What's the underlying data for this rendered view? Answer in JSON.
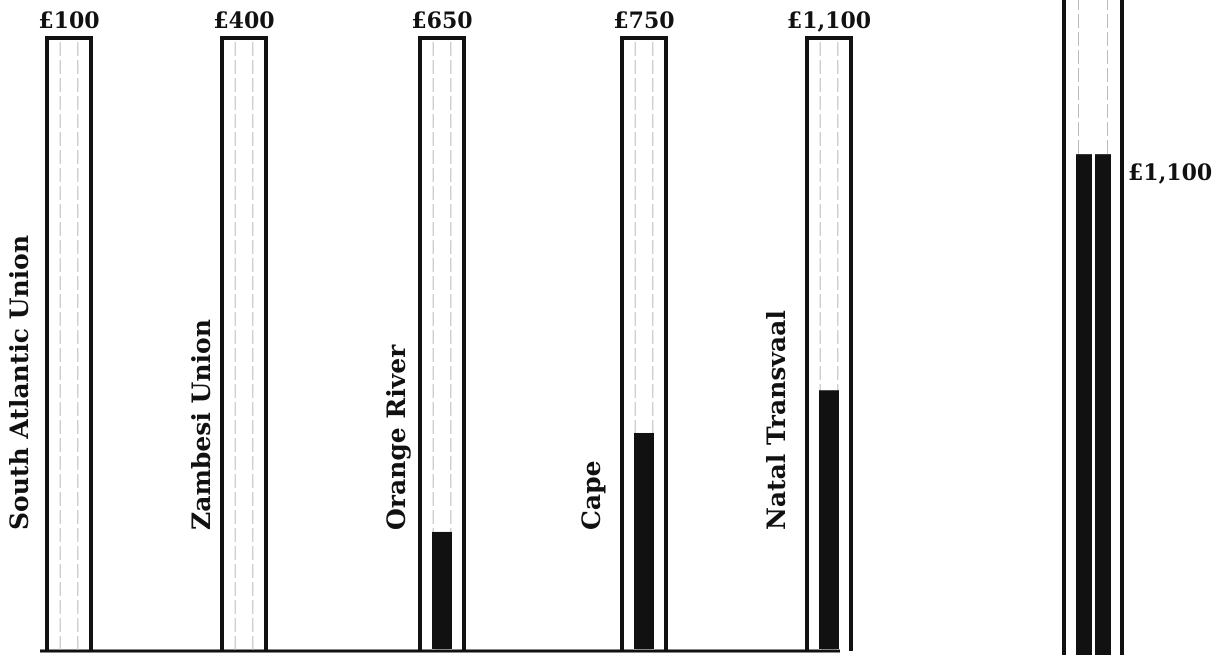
{
  "chart_data": [
    {
      "type": "bar",
      "orientation": "vertical",
      "categories": [
        "South Atlantic Union",
        "Zambesi Union",
        "Orange River",
        "Cape",
        "Natal Transvaal"
      ],
      "goal_labels": [
        "£100",
        "£400",
        "£650",
        "£750",
        "£1,100"
      ],
      "goals": [
        100,
        400,
        650,
        750,
        1100
      ],
      "values": [
        0,
        0,
        252,
        465,
        557
      ],
      "grid": false,
      "colors": {
        "fill": "#111111",
        "frame": "#111111",
        "dash": "#bbbbbb"
      }
    },
    {
      "type": "bar",
      "orientation": "vertical",
      "label": "£1,100",
      "value": 1100,
      "fill_fraction": 0.76
    }
  ]
}
